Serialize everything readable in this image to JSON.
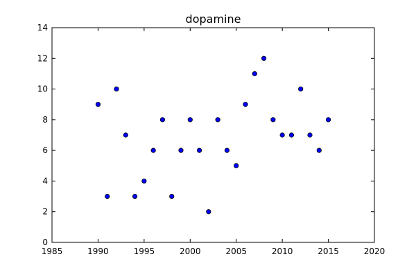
{
  "chart_data": {
    "type": "scatter",
    "title": "dopamine",
    "xlabel": "",
    "ylabel": "",
    "xlim": [
      1985,
      2020
    ],
    "ylim": [
      0,
      14
    ],
    "xticks": [
      1985,
      1990,
      1995,
      2000,
      2005,
      2010,
      2015,
      2020
    ],
    "yticks": [
      0,
      2,
      4,
      6,
      8,
      10,
      12,
      14
    ],
    "grid": false,
    "marker_color": "#0000ff",
    "marker_edge_color": "#000000",
    "points": [
      {
        "x": 1990,
        "y": 9
      },
      {
        "x": 1991,
        "y": 3
      },
      {
        "x": 1992,
        "y": 10
      },
      {
        "x": 1993,
        "y": 7
      },
      {
        "x": 1994,
        "y": 3
      },
      {
        "x": 1995,
        "y": 4
      },
      {
        "x": 1996,
        "y": 6
      },
      {
        "x": 1997,
        "y": 8
      },
      {
        "x": 1998,
        "y": 3
      },
      {
        "x": 1999,
        "y": 6
      },
      {
        "x": 2000,
        "y": 8
      },
      {
        "x": 2001,
        "y": 6
      },
      {
        "x": 2002,
        "y": 2
      },
      {
        "x": 2003,
        "y": 8
      },
      {
        "x": 2004,
        "y": 6
      },
      {
        "x": 2005,
        "y": 5
      },
      {
        "x": 2006,
        "y": 9
      },
      {
        "x": 2007,
        "y": 11
      },
      {
        "x": 2008,
        "y": 12
      },
      {
        "x": 2009,
        "y": 8
      },
      {
        "x": 2010,
        "y": 7
      },
      {
        "x": 2011,
        "y": 7
      },
      {
        "x": 2012,
        "y": 10
      },
      {
        "x": 2013,
        "y": 7
      },
      {
        "x": 2014,
        "y": 6
      },
      {
        "x": 2015,
        "y": 8
      }
    ]
  }
}
